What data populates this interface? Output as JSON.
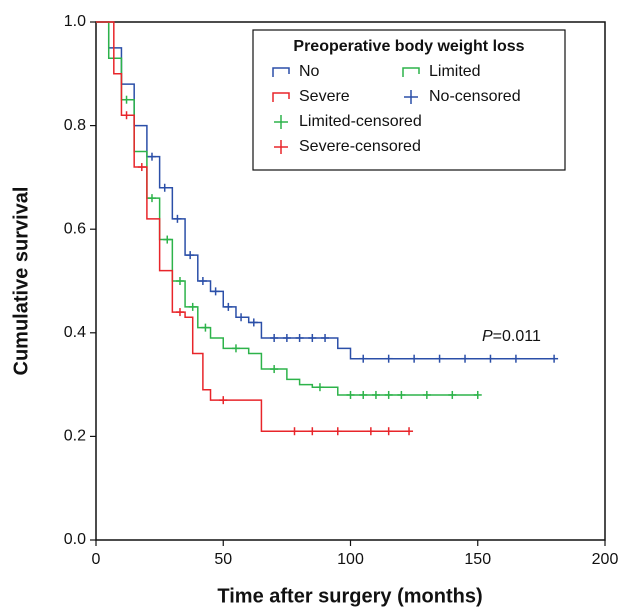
{
  "chart_data": {
    "type": "line",
    "step": true,
    "xlabel": "Time after surgery (months)",
    "ylabel": "Cumulative survival",
    "xlim": [
      0,
      200
    ],
    "xticks": [
      0,
      50,
      100,
      150,
      200
    ],
    "ylim": [
      0,
      1
    ],
    "yticks": [
      {
        "value": 0,
        "label": "0.0"
      },
      0.2,
      0.4,
      0.6,
      0.8,
      {
        "value": 1,
        "label": "1.0"
      }
    ],
    "legend_title": "Preoperative body weight loss",
    "legend": "upper right",
    "annotation": [
      "P",
      "=0.011"
    ],
    "series": [
      {
        "name": "No",
        "color": "#2b4fa8",
        "style": "step",
        "x": [
          0,
          5,
          10,
          15,
          20,
          25,
          30,
          35,
          40,
          45,
          50,
          55,
          60,
          65,
          95,
          100,
          180
        ],
        "values": [
          1,
          0.95,
          0.88,
          0.8,
          0.74,
          0.68,
          0.62,
          0.55,
          0.5,
          0.48,
          0.45,
          0.43,
          0.42,
          0.39,
          0.37,
          0.35,
          0.35
        ]
      },
      {
        "name": "Limited",
        "color": "#2db34a",
        "style": "step",
        "x": [
          0,
          5,
          10,
          15,
          20,
          25,
          30,
          35,
          40,
          45,
          50,
          60,
          65,
          75,
          80,
          85,
          95,
          150
        ],
        "values": [
          1,
          0.93,
          0.85,
          0.75,
          0.66,
          0.58,
          0.5,
          0.45,
          0.41,
          0.39,
          0.37,
          0.36,
          0.33,
          0.31,
          0.3,
          0.295,
          0.28,
          0.28
        ]
      },
      {
        "name": "Severe",
        "color": "#e8252a",
        "style": "step",
        "x": [
          0,
          7,
          10,
          15,
          20,
          25,
          30,
          35,
          38,
          42,
          45,
          60,
          65,
          123
        ],
        "values": [
          1,
          0.9,
          0.82,
          0.72,
          0.62,
          0.52,
          0.44,
          0.43,
          0.36,
          0.29,
          0.27,
          0.27,
          0.21,
          0.21
        ]
      },
      {
        "name": "No-censored",
        "color": "#2b4fa8",
        "style": "censored",
        "x": [
          22,
          27,
          32,
          37,
          42,
          47,
          52,
          57,
          62,
          70,
          75,
          80,
          85,
          90,
          105,
          115,
          125,
          135,
          145,
          155,
          165,
          180
        ],
        "values": [
          0.74,
          0.68,
          0.62,
          0.55,
          0.5,
          0.48,
          0.45,
          0.43,
          0.42,
          0.39,
          0.39,
          0.39,
          0.39,
          0.39,
          0.35,
          0.35,
          0.35,
          0.35,
          0.35,
          0.35,
          0.35,
          0.35
        ]
      },
      {
        "name": "Limited-censored",
        "color": "#2db34a",
        "style": "censored",
        "x": [
          12,
          22,
          28,
          33,
          38,
          43,
          55,
          70,
          88,
          100,
          105,
          110,
          115,
          120,
          130,
          140,
          150
        ],
        "values": [
          0.85,
          0.66,
          0.58,
          0.5,
          0.45,
          0.41,
          0.37,
          0.33,
          0.295,
          0.28,
          0.28,
          0.28,
          0.28,
          0.28,
          0.28,
          0.28,
          0.28
        ]
      },
      {
        "name": "Severe-censored",
        "color": "#e8252a",
        "style": "censored",
        "x": [
          12,
          18,
          33,
          50,
          78,
          85,
          95,
          108,
          115,
          123
        ],
        "values": [
          0.82,
          0.72,
          0.44,
          0.27,
          0.21,
          0.21,
          0.21,
          0.21,
          0.21,
          0.21
        ]
      }
    ]
  }
}
